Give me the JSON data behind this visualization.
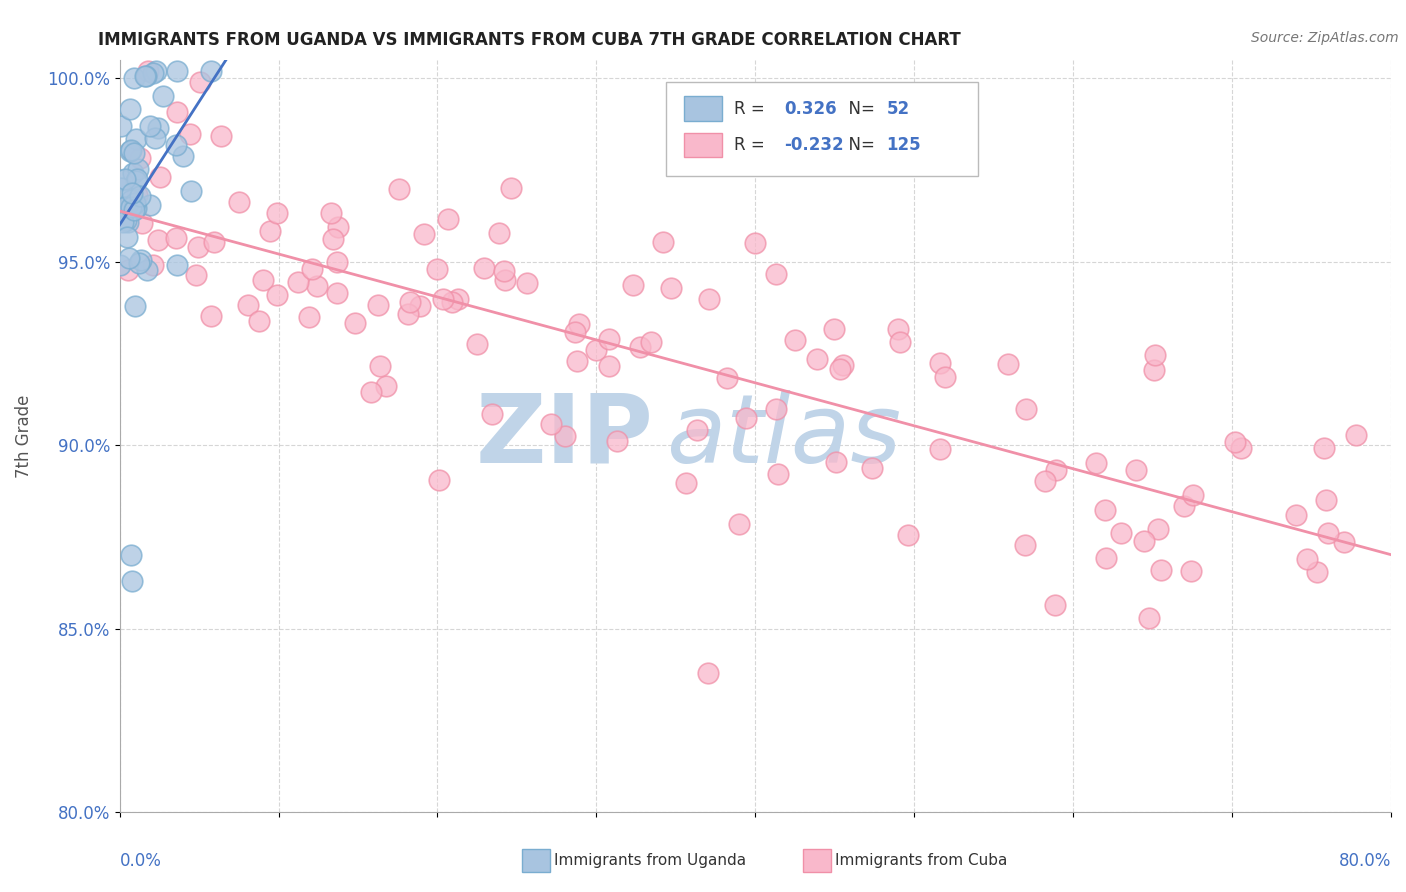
{
  "title": "IMMIGRANTS FROM UGANDA VS IMMIGRANTS FROM CUBA 7TH GRADE CORRELATION CHART",
  "source_text": "Source: ZipAtlas.com",
  "ylabel": "7th Grade",
  "x_min": 0.0,
  "x_max": 0.8,
  "y_min": 0.8,
  "y_max": 1.005,
  "uganda_R": 0.326,
  "uganda_N": 52,
  "cuba_R": -0.232,
  "cuba_N": 125,
  "uganda_color": "#a8c4e0",
  "cuba_color": "#f9b8cb",
  "uganda_edge_color": "#7aadd0",
  "cuba_edge_color": "#f090a8",
  "uganda_line_color": "#4472c4",
  "cuba_line_color": "#f090a8",
  "watermark_zip_color": "#c0d4e8",
  "watermark_atlas_color": "#c0d4e8",
  "legend_box_color": "#e8e8e8",
  "tick_color": "#4472c4",
  "ylabel_color": "#555555",
  "title_color": "#222222",
  "source_color": "#777777",
  "grid_color": "#cccccc",
  "spine_color": "#aaaaaa"
}
